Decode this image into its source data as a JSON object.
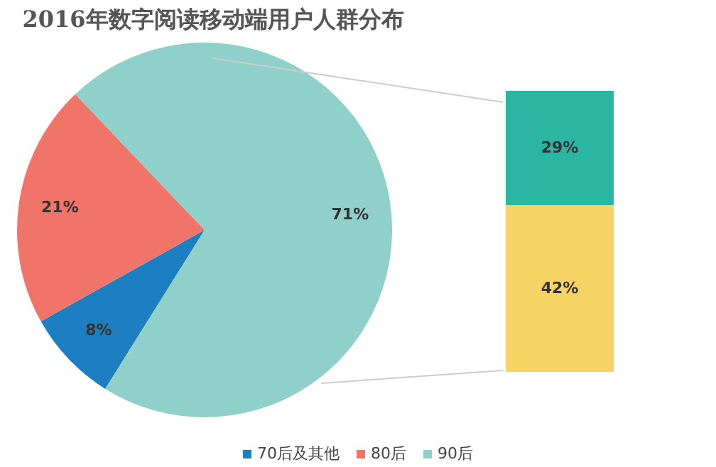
{
  "chart_data": [
    {
      "type": "pie",
      "title": "2016年数字阅读移动端用户人群分布",
      "categories": [
        "70后及其他",
        "80后",
        "90后"
      ],
      "values": [
        8,
        21,
        71
      ],
      "colors": [
        "#1b7fc2",
        "#f07467",
        "#8fd0ca"
      ],
      "value_labels": [
        "8%",
        "21%",
        "71%"
      ],
      "legend": "bottom"
    },
    {
      "type": "bar",
      "stacked": true,
      "categories": [
        null
      ],
      "series": [
        {
          "color": "#f7d264",
          "values": [
            42
          ],
          "value_labels": [
            "42%"
          ]
        },
        {
          "color": "#2bb6a3",
          "values": [
            29
          ],
          "value_labels": [
            "29%"
          ]
        }
      ]
    }
  ]
}
